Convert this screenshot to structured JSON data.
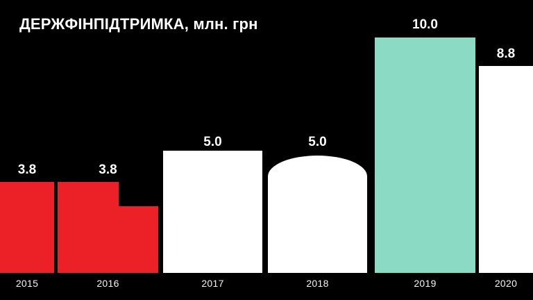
{
  "title": "ДЕРЖФІНПІДТРИМКА, млн. грн",
  "colors": {
    "background": "#000000",
    "bar_red": "#EC2127",
    "bar_teal": "#8ADAC4",
    "bar_white": "#FFFFFF",
    "text": "#FFFFFF"
  },
  "chart_data": {
    "type": "bar",
    "title": "ДЕРЖФІНПІДТРИМКА, млн. грн",
    "ylabel": "млн. грн",
    "categories": [
      "2015",
      "2016",
      "2017",
      "2018",
      "2019",
      "2020"
    ],
    "values": [
      3.8,
      3.8,
      5.0,
      5.0,
      10.0,
      8.8
    ],
    "value_labels": [
      "3.8",
      "3.8",
      "5.0",
      "5.0",
      "10.0",
      "8.8"
    ],
    "series_colors": [
      "#EC2127",
      "#EC2127",
      "#FFFFFF",
      "#FFFFFF",
      "#8ADAC4",
      "#FFFFFF"
    ],
    "bar_shapes": [
      "rect",
      "step-down-right",
      "rect",
      "dome-top",
      "rect",
      "rect"
    ],
    "step_secondary_value": 2.8,
    "ylim": [
      0,
      10.5
    ],
    "grid": false,
    "legend": false,
    "axis_lines": false,
    "background": "#000000",
    "label_color": "#FFFFFF",
    "label_position": "above-bar"
  }
}
